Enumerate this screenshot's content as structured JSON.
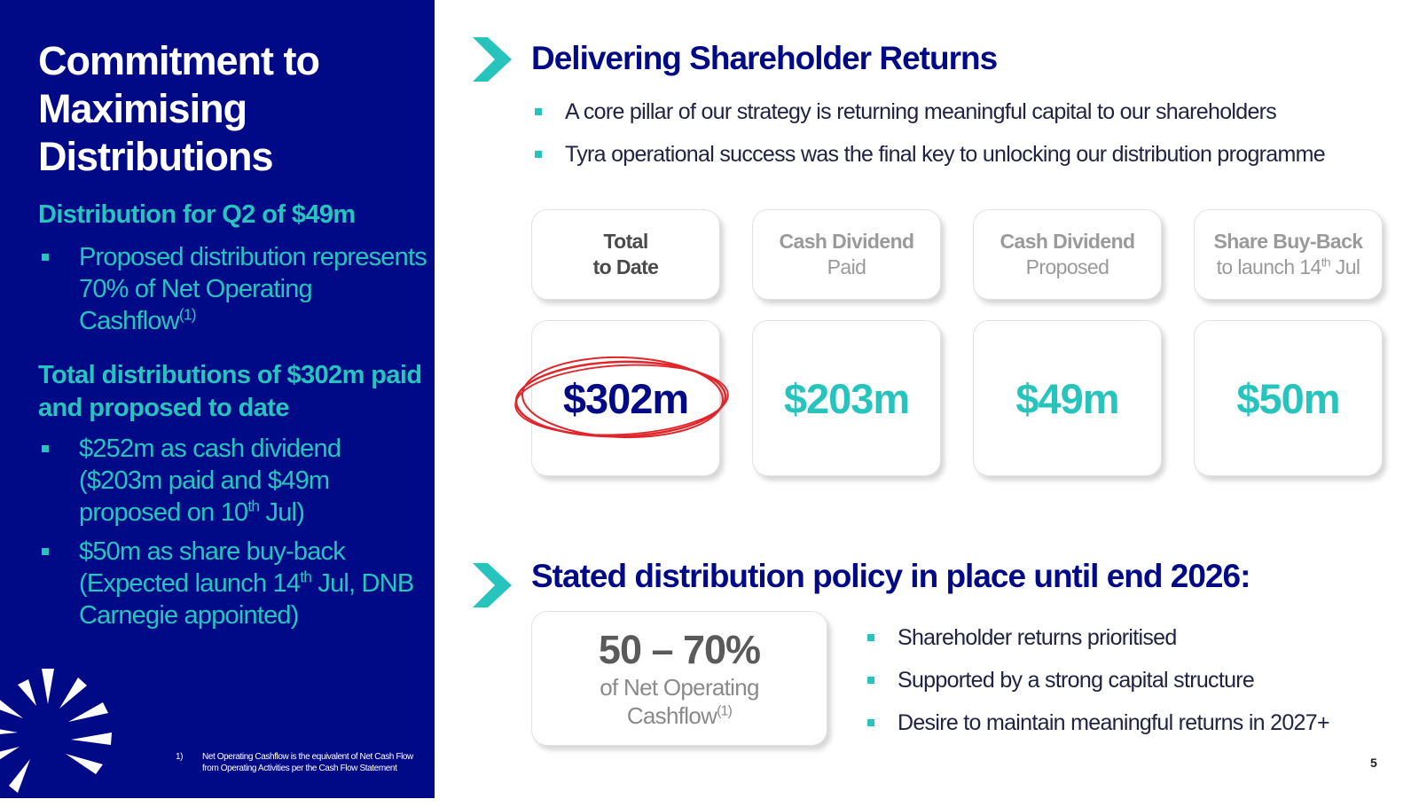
{
  "left_panel": {
    "title": "Commitment to Maximising Distributions",
    "section1": {
      "heading": "Distribution for Q2 of $49m",
      "bullet1": {
        "text": "Proposed distribution represents 70% of Net Operating Cashflow",
        "sup": "(1)"
      }
    },
    "section2": {
      "heading": "Total distributions of $302m paid and proposed to date",
      "bullet1": {
        "pre": "$252m as cash dividend ($203m paid and $49m proposed on 10",
        "sup": "th",
        "post": " Jul)"
      },
      "bullet2": {
        "pre": "$50m as share buy-back (Expected launch 14",
        "sup": "th",
        "post": " Jul, DNB Carnegie appointed)"
      }
    },
    "footnote": {
      "number": "1)",
      "text": "Net Operating Cashflow is the equivalent of Net Cash Flow from Operating Activities per the Cash Flow Statement"
    }
  },
  "returns": {
    "title": "Delivering Shareholder Returns",
    "bullets": [
      "A core pillar of our strategy is returning meaningful capital to our shareholders",
      "Tyra operational success was the final key to unlocking our distribution programme"
    ],
    "cards": [
      {
        "line1": "Total",
        "line2": "to Date",
        "value": "$302m"
      },
      {
        "line1": "Cash Dividend",
        "line2": "Paid",
        "value": "$203m"
      },
      {
        "line1": "Cash Dividend",
        "line2": "Proposed",
        "value": "$49m"
      },
      {
        "line1": "Share Buy-Back",
        "line2_pre": "to launch 14",
        "line2_sup": "th",
        "line2_post": " Jul",
        "value": "$50m"
      }
    ]
  },
  "policy": {
    "title": "Stated distribution policy in place until end 2026:",
    "range": "50 – 70%",
    "desc_line1": "of Net Operating",
    "desc_line2": "Cashflow",
    "desc_sup": "(1)",
    "bullets": [
      "Shareholder returns prioritised",
      "Supported by a strong capital structure",
      "Desire to maintain meaningful returns in 2027+"
    ]
  },
  "page_number": "5",
  "colors": {
    "navy": "#010a86",
    "teal": "#27c4bd",
    "highlight_red": "#e0262b"
  }
}
